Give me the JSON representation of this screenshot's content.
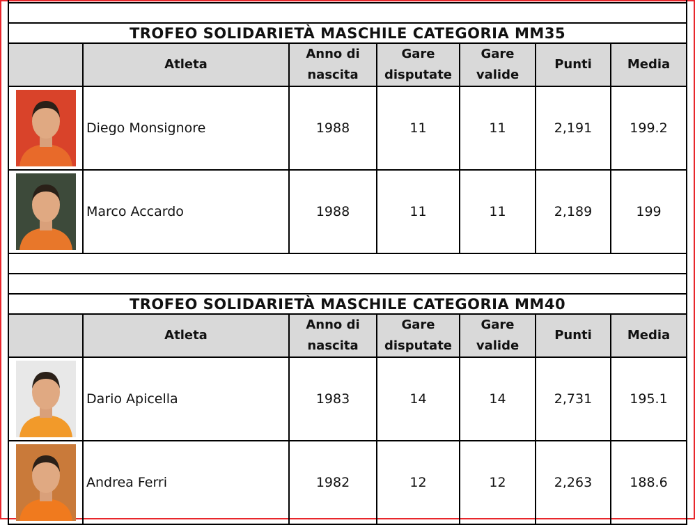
{
  "sections": [
    {
      "title": "TROFEO SOLIDARIETÀ MASCHILE CATEGORIA MM35",
      "headers": [
        "",
        "Atleta",
        "Anno di nascita",
        "Gare disputate",
        "Gare valide",
        "Punti",
        "Media"
      ],
      "rows": [
        {
          "atleta": "Diego Monsignore",
          "anno": "1988",
          "disputate": "11",
          "valide": "11",
          "punti": "2,191",
          "media": "199.2"
        },
        {
          "atleta": "Marco Accardo",
          "anno": "1988",
          "disputate": "11",
          "valide": "11",
          "punti": "2,189",
          "media": "199"
        }
      ]
    },
    {
      "title": "TROFEO SOLIDARIETÀ MASCHILE CATEGORIA MM40",
      "headers": [
        "",
        "Atleta",
        "Anno di nascita",
        "Gare disputate",
        "Gare valide",
        "Punti",
        "Media"
      ],
      "rows": [
        {
          "atleta": "Dario Apicella",
          "anno": "1983",
          "disputate": "14",
          "valide": "14",
          "punti": "2,731",
          "media": "195.1"
        },
        {
          "atleta": "Andrea Ferri",
          "anno": "1982",
          "disputate": "12",
          "valide": "12",
          "punti": "2,263",
          "media": "188.6"
        }
      ]
    }
  ],
  "colors": {
    "frame": "#e8262b",
    "header_bg": "#d9d9d9",
    "shirt": "#f07a1e"
  }
}
